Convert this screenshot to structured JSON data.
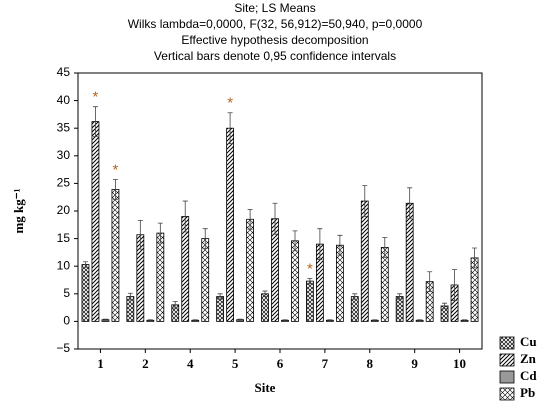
{
  "chart_data": {
    "type": "bar",
    "title": "Site; LS Means",
    "subtitle": [
      "Wilks lambda=0,0000, F(32, 56,912)=50,940, p=0,0000",
      "Effective hypothesis decomposition",
      "Vertical bars denote 0,95 confidence intervals"
    ],
    "xlabel": "Site",
    "ylabel": "mg kg⁻¹",
    "categories": [
      "1",
      "2",
      "4",
      "5",
      "6",
      "7",
      "8",
      "9",
      "10"
    ],
    "series": [
      {
        "name": "Cu",
        "color": "#000000",
        "fill": "dots",
        "values": [
          10.3,
          4.5,
          3,
          4.5,
          5,
          7.3,
          4.5,
          4.5,
          2.8
        ],
        "errors": [
          0.5,
          0.6,
          0.6,
          0.5,
          0.5,
          0.5,
          0.5,
          0.5,
          0.5
        ],
        "annotations": [
          null,
          null,
          null,
          null,
          null,
          "*",
          null,
          null,
          null
        ]
      },
      {
        "name": "Zn",
        "color": "#000000",
        "fill": "hatch",
        "values": [
          36.2,
          15.7,
          19,
          35,
          18.6,
          14,
          21.8,
          21.4,
          6.6
        ],
        "errors": [
          2.7,
          2.6,
          2.8,
          2.8,
          2.8,
          2.8,
          2.8,
          2.8,
          2.8
        ],
        "annotations": [
          "*",
          null,
          null,
          "*",
          null,
          null,
          null,
          null,
          null
        ]
      },
      {
        "name": "Cd",
        "color": "#999999",
        "fill": "solid",
        "values": [
          0.3,
          0.2,
          0.2,
          0.3,
          0.2,
          0.2,
          0.2,
          0.2,
          0.2
        ],
        "errors": [
          0.1,
          0.1,
          0.1,
          0.1,
          0.1,
          0.1,
          0.1,
          0.1,
          0.1
        ],
        "annotations": [
          null,
          null,
          null,
          null,
          null,
          null,
          null,
          null,
          null
        ]
      },
      {
        "name": "Pb",
        "color": "#000000",
        "fill": "crosshatch",
        "values": [
          23.9,
          16,
          15,
          18.5,
          14.6,
          13.8,
          13.4,
          7.2,
          11.5
        ],
        "errors": [
          1.8,
          1.8,
          1.8,
          1.8,
          1.8,
          1.8,
          1.8,
          1.8,
          1.8
        ],
        "annotations": [
          "*",
          null,
          null,
          null,
          null,
          null,
          null,
          null,
          null
        ]
      }
    ],
    "annotation_color": "#b5651d",
    "ylim": [
      -5,
      45
    ],
    "yticks": [
      {
        "value": -5,
        "label": "−5"
      },
      0,
      5,
      10,
      15,
      20,
      25,
      30,
      35,
      40,
      45
    ],
    "legend": "lower right"
  }
}
